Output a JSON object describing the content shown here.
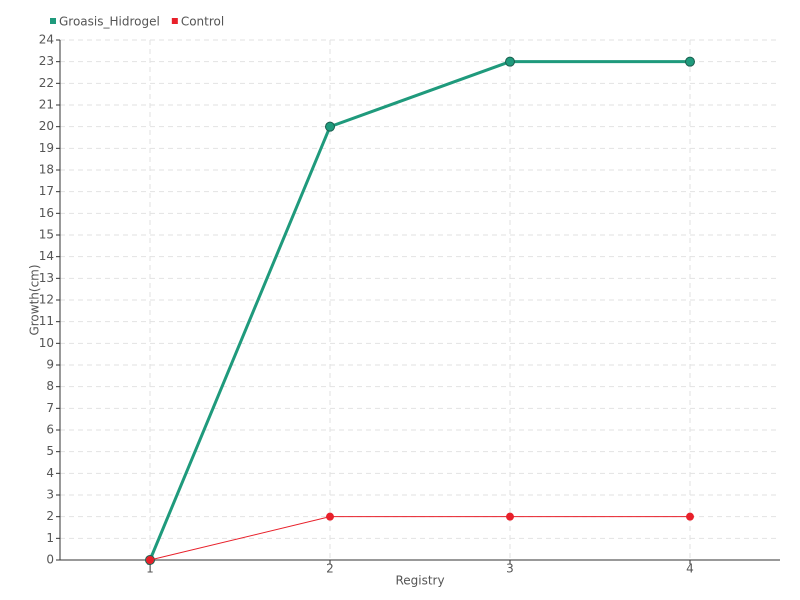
{
  "chart_data": {
    "type": "line",
    "x": [
      1,
      2,
      3,
      4
    ],
    "xlim": [
      0.5,
      4.5
    ],
    "xticks": [
      1,
      2,
      3,
      4
    ],
    "ylim": [
      0,
      24
    ],
    "yticks": [
      0,
      1,
      2,
      3,
      4,
      5,
      6,
      7,
      8,
      9,
      10,
      11,
      12,
      13,
      14,
      15,
      16,
      17,
      18,
      19,
      20,
      21,
      22,
      23,
      24
    ],
    "xlabel": "Registry",
    "ylabel": "Growth(cm)",
    "grid": true,
    "legend": "top-left",
    "series": [
      {
        "name": "Groasis_Hidrogel",
        "color": "#1f9a7c",
        "values": [
          0,
          20,
          23,
          23
        ]
      },
      {
        "name": "Control",
        "color": "#e8202a",
        "values": [
          0,
          2,
          2,
          2
        ]
      }
    ]
  }
}
